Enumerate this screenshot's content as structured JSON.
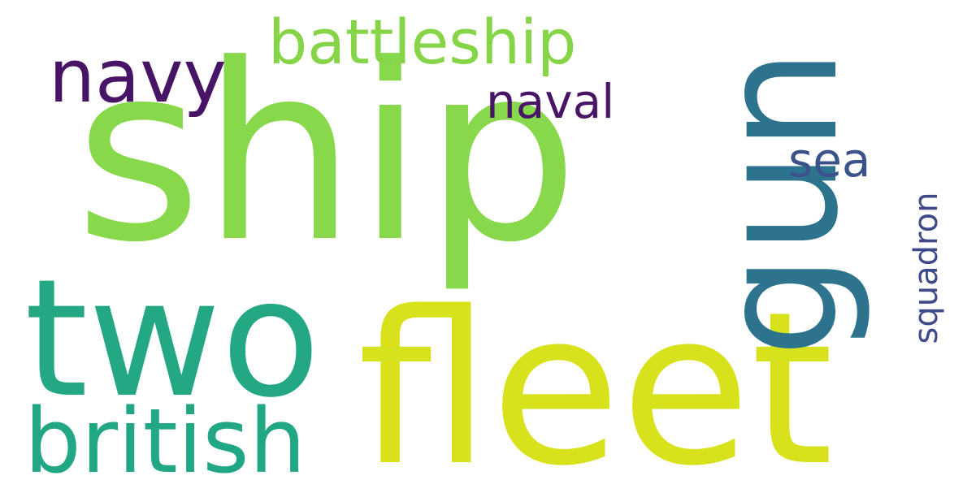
{
  "words": [
    {
      "key": "ship",
      "text": "ship",
      "color": "#88d84b"
    },
    {
      "key": "fleet",
      "text": "fleet",
      "color": "#d7e21c"
    },
    {
      "key": "two",
      "text": "two",
      "color": "#24a884"
    },
    {
      "key": "gun",
      "text": "gun",
      "color": "#2e738e"
    },
    {
      "key": "british",
      "text": "british",
      "color": "#22a785"
    },
    {
      "key": "battleship",
      "text": "battleship",
      "color": "#86d549"
    },
    {
      "key": "navy",
      "text": "navy",
      "color": "#471466"
    },
    {
      "key": "naval",
      "text": "naval",
      "color": "#471466"
    },
    {
      "key": "sea",
      "text": "sea",
      "color": "#3b528b"
    },
    {
      "key": "squadron",
      "text": "squadron",
      "color": "#3e4989"
    }
  ]
}
